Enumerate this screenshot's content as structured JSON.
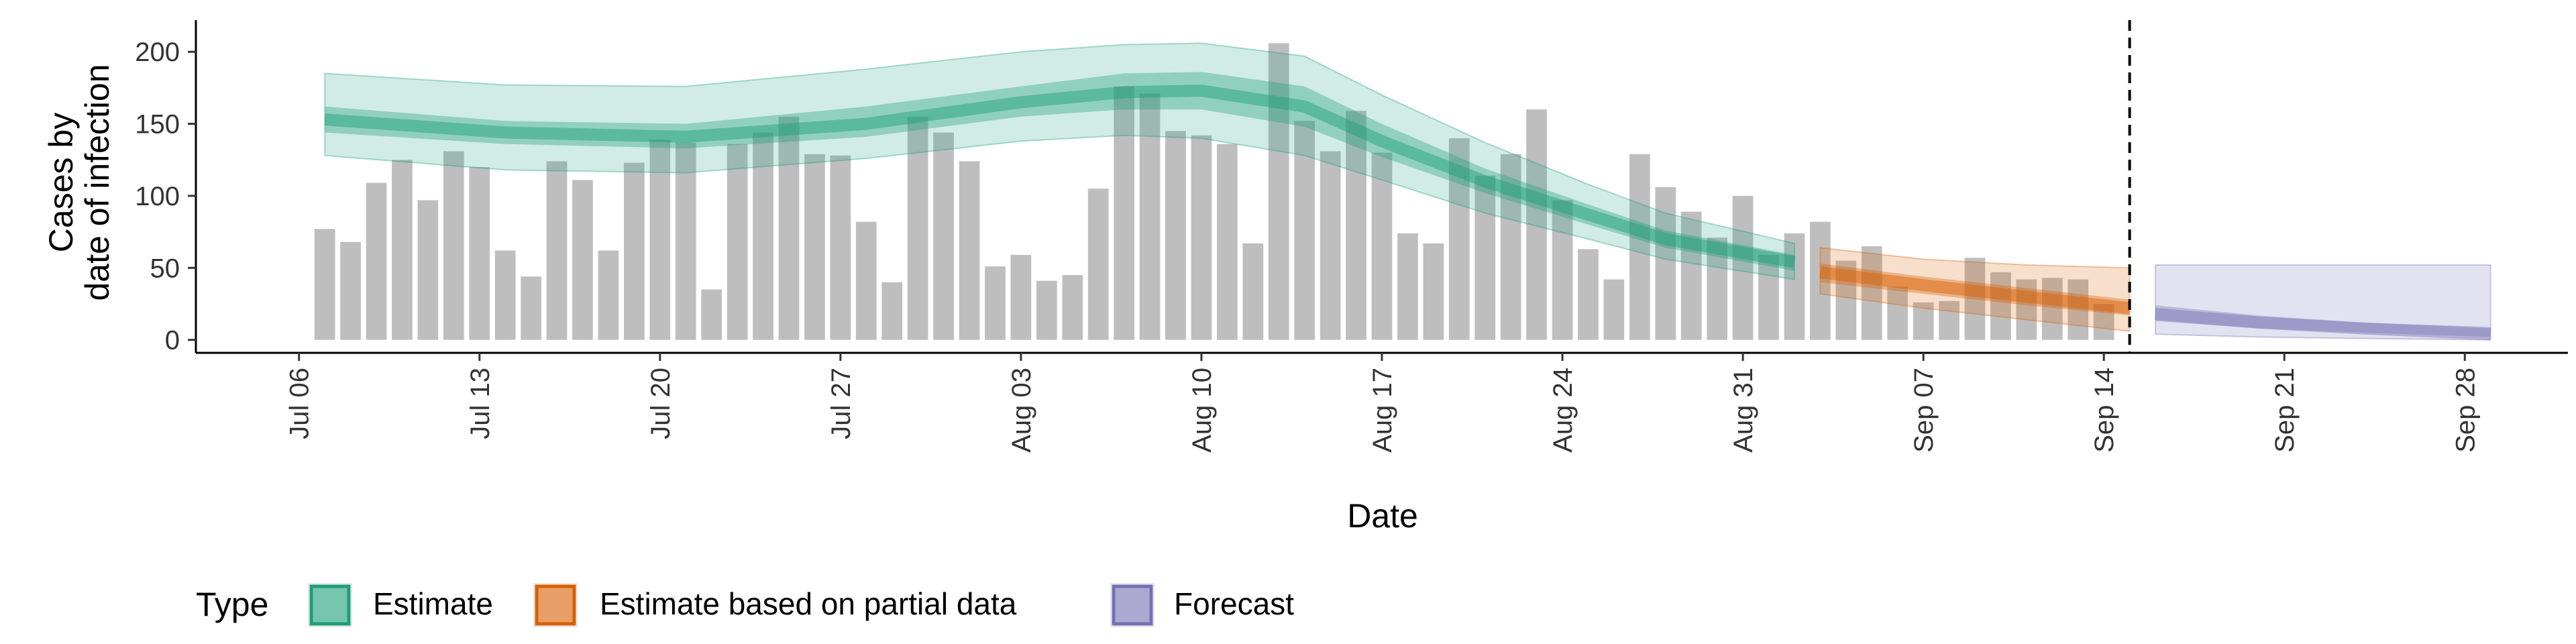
{
  "chart_data": {
    "type": "bar",
    "xlabel": "Date",
    "ylabel_lines": [
      "Cases by",
      "date of infection"
    ],
    "y_ticks": [
      0,
      50,
      100,
      150,
      200
    ],
    "ylim": [
      -9,
      222
    ],
    "x_range": [
      "2020-07-02",
      "2020-10-02"
    ],
    "date_ticks": [
      {
        "date": "2020-07-06",
        "label": "Jul 06"
      },
      {
        "date": "2020-07-13",
        "label": "Jul 13"
      },
      {
        "date": "2020-07-20",
        "label": "Jul 20"
      },
      {
        "date": "2020-07-27",
        "label": "Jul 27"
      },
      {
        "date": "2020-08-03",
        "label": "Aug 03"
      },
      {
        "date": "2020-08-10",
        "label": "Aug 10"
      },
      {
        "date": "2020-08-17",
        "label": "Aug 17"
      },
      {
        "date": "2020-08-24",
        "label": "Aug 24"
      },
      {
        "date": "2020-08-31",
        "label": "Aug 31"
      },
      {
        "date": "2020-09-07",
        "label": "Sep 07"
      },
      {
        "date": "2020-09-14",
        "label": "Sep 14"
      },
      {
        "date": "2020-09-21",
        "label": "Sep 21"
      },
      {
        "date": "2020-09-28",
        "label": "Sep 28"
      }
    ],
    "bars": {
      "start_date": "2020-07-07",
      "color": "#bebebe",
      "values": [
        77,
        68,
        109,
        125,
        97,
        131,
        120,
        62,
        44,
        124,
        111,
        62,
        123,
        139,
        137,
        35,
        136,
        144,
        155,
        129,
        128,
        82,
        40,
        155,
        144,
        124,
        51,
        59,
        41,
        45,
        105,
        176,
        171,
        145,
        142,
        136,
        67,
        206,
        152,
        131,
        159,
        130,
        74,
        67,
        140,
        114,
        129,
        160,
        97,
        63,
        42,
        129,
        106,
        89,
        71,
        100,
        59,
        74,
        82,
        55,
        65,
        37,
        26,
        27,
        57,
        47,
        42,
        43,
        42,
        25
      ]
    },
    "forecast_cutoff": "2020-09-15",
    "ribbons": [
      {
        "type": "Estimate",
        "color": "#1b9e77",
        "dates": [
          "2020-07-07",
          "2020-07-14",
          "2020-07-21",
          "2020-07-28",
          "2020-08-03",
          "2020-08-07",
          "2020-08-10",
          "2020-08-14",
          "2020-08-17",
          "2020-08-21",
          "2020-08-25",
          "2020-08-28",
          "2020-09-02"
        ],
        "median": [
          153,
          144,
          141,
          150,
          165,
          172,
          173,
          162,
          138,
          110,
          87,
          70,
          54
        ],
        "lower_50": [
          144,
          136,
          133,
          141,
          155,
          160,
          160,
          148,
          127,
          102,
          80,
          64,
          48
        ],
        "upper_50": [
          162,
          152,
          150,
          162,
          176,
          185,
          186,
          176,
          150,
          119,
          94,
          76,
          59
        ],
        "lower_90": [
          128,
          118,
          116,
          126,
          138,
          142,
          140,
          128,
          111,
          88,
          70,
          56,
          42
        ],
        "upper_90": [
          185,
          177,
          176,
          188,
          200,
          205,
          206,
          197,
          170,
          137,
          108,
          88,
          67
        ]
      },
      {
        "type": "Estimate based on partial data",
        "color": "#d95f02",
        "dates": [
          "2020-09-03",
          "2020-09-07",
          "2020-09-11",
          "2020-09-15"
        ],
        "median": [
          47,
          38,
          30,
          22
        ],
        "lower_50": [
          40,
          32,
          24,
          17
        ],
        "upper_50": [
          53,
          44,
          36,
          28
        ],
        "lower_90": [
          32,
          22,
          14,
          6
        ],
        "upper_90": [
          64,
          56,
          52,
          50
        ]
      },
      {
        "type": "Forecast",
        "color": "#7570b3",
        "dates": [
          "2020-09-16",
          "2020-09-20",
          "2020-09-24",
          "2020-09-29"
        ],
        "median": [
          18,
          12,
          8,
          4
        ],
        "lower_50": [
          13,
          8,
          5,
          2
        ],
        "upper_50": [
          24,
          17,
          12,
          9
        ],
        "lower_90": [
          4,
          2,
          1,
          0
        ],
        "upper_90": [
          52,
          52,
          52,
          52
        ]
      }
    ],
    "legend": {
      "title": "Type",
      "position": "bottom",
      "entries": [
        {
          "label": "Estimate",
          "color": "#1b9e77"
        },
        {
          "label": "Estimate based on partial data",
          "color": "#d95f02"
        },
        {
          "label": "Forecast",
          "color": "#7570b3"
        }
      ]
    }
  }
}
